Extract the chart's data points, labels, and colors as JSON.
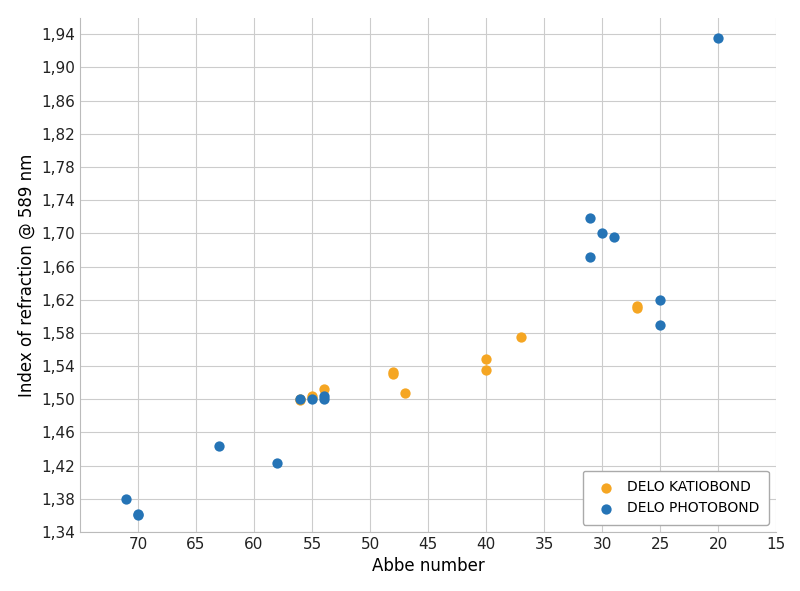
{
  "katiobond": {
    "abbe": [
      54,
      55,
      55,
      56,
      56,
      48,
      48,
      47,
      40,
      40,
      37,
      27,
      27
    ],
    "refraction": [
      1.512,
      1.504,
      1.501,
      1.5,
      1.499,
      1.531,
      1.533,
      1.507,
      1.535,
      1.548,
      1.575,
      1.61,
      1.612
    ],
    "color": "#F5A623",
    "label": "DELO KATIOBOND",
    "marker": "o",
    "size": 55
  },
  "photobond": {
    "abbe": [
      71,
      70,
      70,
      63,
      58,
      56,
      55,
      54,
      54,
      31,
      31,
      30,
      29,
      25,
      25,
      20
    ],
    "refraction": [
      1.38,
      1.362,
      1.36,
      1.444,
      1.423,
      1.5,
      1.5,
      1.504,
      1.5,
      1.718,
      1.672,
      1.7,
      1.695,
      1.62,
      1.59,
      1.935
    ],
    "color": "#2574B6",
    "label": "DELO PHOTOBOND",
    "marker": "o",
    "size": 55
  },
  "xlabel": "Abbe number",
  "ylabel": "Index of refraction @ 589 nm",
  "xlim_left": 75,
  "xlim_right": 15,
  "ylim_bottom": 1.34,
  "ylim_top": 1.96,
  "xticks": [
    70,
    65,
    60,
    55,
    50,
    45,
    40,
    35,
    30,
    25,
    20,
    15
  ],
  "yticks": [
    1.34,
    1.38,
    1.42,
    1.46,
    1.5,
    1.54,
    1.58,
    1.62,
    1.66,
    1.7,
    1.74,
    1.78,
    1.82,
    1.86,
    1.9,
    1.94
  ],
  "grid_color": "#CCCCCC",
  "bg_color": "#FFFFFF",
  "legend_pos": "lower right",
  "tick_label_fontsize": 11,
  "axis_label_fontsize": 12,
  "figure_width": 8.0,
  "figure_height": 5.91,
  "dpi": 100
}
